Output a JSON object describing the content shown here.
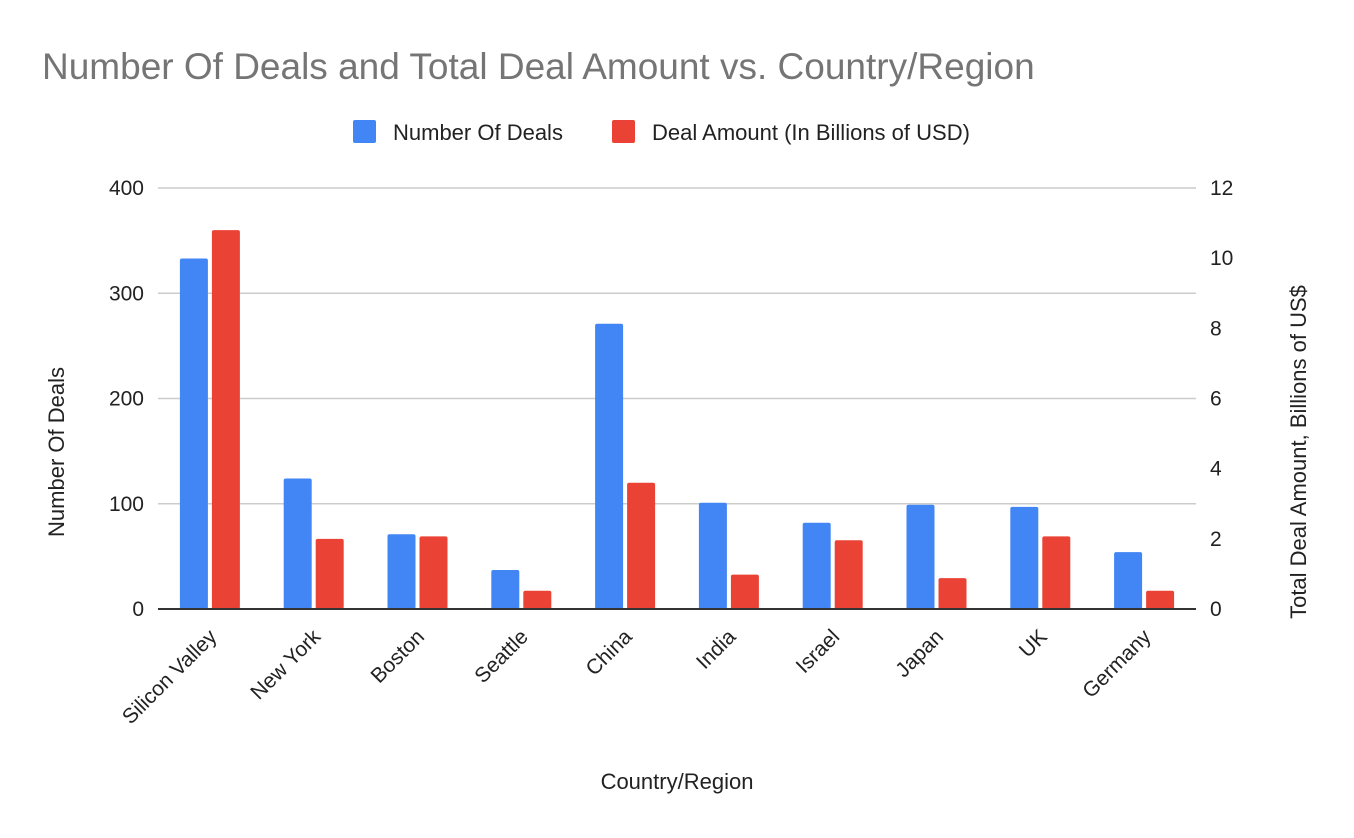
{
  "chart_data": {
    "type": "bar",
    "title": "Number Of Deals and Total Deal Amount vs. Country/Region",
    "xlabel": "Country/Region",
    "ylabel_left": "Number Of Deals",
    "ylabel_right": "Total Deal Amount, Billions of US$",
    "categories": [
      "Silicon Valley",
      "New York",
      "Boston",
      "Seattle",
      "China",
      "India",
      "Israel",
      "Japan",
      "UK",
      "Germany"
    ],
    "series": [
      {
        "name": "Number Of Deals",
        "axis": "left",
        "color": "#4285f4",
        "values": [
          333,
          124,
          71,
          37,
          271,
          101,
          82,
          99,
          97,
          54
        ]
      },
      {
        "name": "Deal Amount (In Billions of USD)",
        "axis": "right",
        "color": "#ea4335",
        "values": [
          10.8,
          2.0,
          2.07,
          0.52,
          3.6,
          0.98,
          1.96,
          0.88,
          2.07,
          0.52
        ]
      }
    ],
    "ylim_left": [
      0,
      400
    ],
    "yticks_left": [
      "0",
      "100",
      "200",
      "300",
      "400"
    ],
    "ylim_right": [
      0,
      12
    ],
    "yticks_right": [
      "0",
      "2",
      "4",
      "6",
      "8",
      "10",
      "12"
    ],
    "grid": true,
    "legend_position": "top-center"
  }
}
